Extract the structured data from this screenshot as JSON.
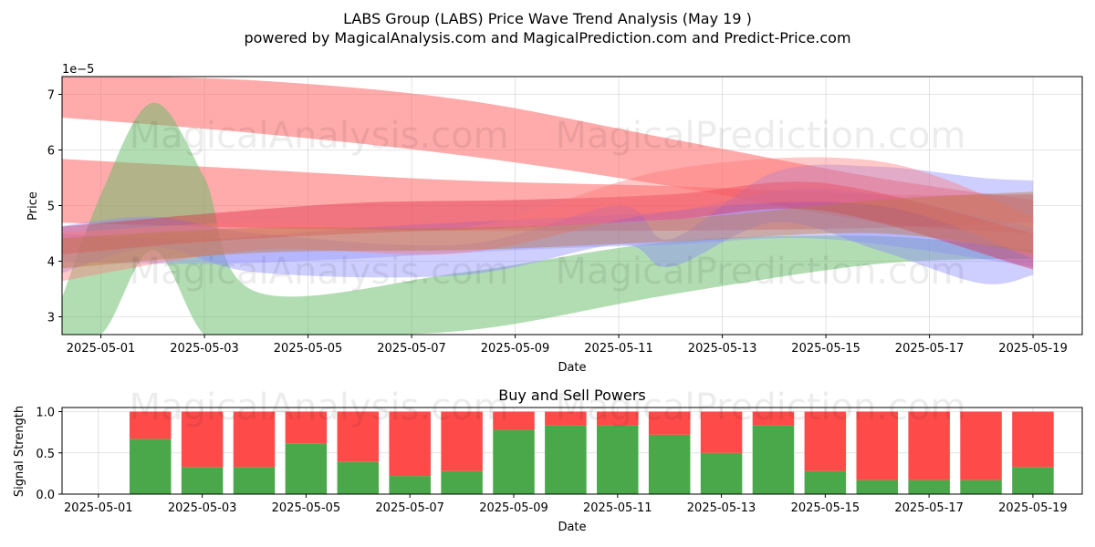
{
  "title": "LABS Group (LABS) Price Wave Trend Analysis (May 19 )",
  "subtitle": "powered by MagicalAnalysis.com and MagicalPrediction.com and Predict-Price.com",
  "watermark": "MagicalAnalysis.com    MagicalPrediction.com",
  "chart_data": [
    {
      "type": "area",
      "xlabel": "Date",
      "ylabel": "Price",
      "y_scale_label": "1e−5",
      "x_range": [
        "2025-04-30",
        "2025-05-19"
      ],
      "ylim": [
        2.68,
        7.32
      ],
      "x_ticks": [
        "2025-05-01",
        "2025-05-03",
        "2025-05-05",
        "2025-05-07",
        "2025-05-09",
        "2025-05-11",
        "2025-05-13",
        "2025-05-15",
        "2025-05-17",
        "2025-05-19"
      ],
      "y_ticks": [
        "3",
        "4",
        "5",
        "6",
        "7"
      ],
      "grid": true,
      "bands": [
        {
          "color": "#ff6666",
          "opacity": 0.55,
          "x": [
            "2025-04-30",
            "2025-05-04",
            "2025-05-08",
            "2025-05-12",
            "2025-05-16",
            "2025-05-19"
          ],
          "upper": [
            7.35,
            7.25,
            6.9,
            6.2,
            5.5,
            5.1
          ],
          "lower": [
            6.6,
            6.3,
            5.9,
            5.35,
            4.7,
            4.5
          ]
        },
        {
          "color": "#ff6666",
          "opacity": 0.55,
          "x": [
            "2025-04-30",
            "2025-05-04",
            "2025-05-08",
            "2025-05-12",
            "2025-05-16",
            "2025-05-19"
          ],
          "upper": [
            5.85,
            5.65,
            5.45,
            5.35,
            5.2,
            5.2
          ],
          "lower": [
            4.7,
            4.6,
            4.55,
            4.55,
            4.6,
            4.7
          ]
        },
        {
          "color": "#66bb66",
          "opacity": 0.5,
          "x": [
            "2025-04-30",
            "2025-05-01",
            "2025-05-02",
            "2025-05-03",
            "2025-05-04",
            "2025-05-08",
            "2025-05-12",
            "2025-05-16",
            "2025-05-19"
          ],
          "upper": [
            2.68,
            5.2,
            6.85,
            5.5,
            3.45,
            3.8,
            4.35,
            4.45,
            4.2
          ],
          "lower": [
            2.68,
            2.68,
            4.2,
            2.68,
            2.68,
            2.75,
            3.4,
            3.95,
            4.05
          ]
        },
        {
          "color": "#8888ff",
          "opacity": 0.4,
          "x": [
            "2025-04-30",
            "2025-05-02",
            "2025-05-04",
            "2025-05-08",
            "2025-05-11",
            "2025-05-12",
            "2025-05-14",
            "2025-05-16",
            "2025-05-18",
            "2025-05-19"
          ],
          "upper": [
            4.6,
            4.8,
            4.5,
            4.3,
            5.0,
            4.4,
            5.6,
            5.7,
            5.5,
            5.45
          ],
          "lower": [
            3.7,
            4.25,
            3.8,
            3.75,
            4.3,
            3.9,
            4.7,
            4.2,
            3.6,
            3.75
          ]
        },
        {
          "color": "#8888ff",
          "opacity": 0.35,
          "x": [
            "2025-04-30",
            "2025-05-03",
            "2025-05-06",
            "2025-05-09",
            "2025-05-12",
            "2025-05-15",
            "2025-05-19"
          ],
          "upper": [
            4.5,
            4.4,
            4.6,
            4.75,
            4.9,
            5.3,
            4.6
          ],
          "lower": [
            4.0,
            3.95,
            4.05,
            4.2,
            4.3,
            4.4,
            3.9
          ]
        },
        {
          "color": "#dd2244",
          "opacity": 0.4,
          "x": [
            "2025-04-30",
            "2025-05-03",
            "2025-05-06",
            "2025-05-09",
            "2025-05-12",
            "2025-05-15",
            "2025-05-19"
          ],
          "upper": [
            4.6,
            4.85,
            5.05,
            5.1,
            5.2,
            5.4,
            4.5
          ],
          "lower": [
            4.1,
            4.35,
            4.5,
            4.6,
            4.75,
            4.9,
            3.85
          ]
        },
        {
          "color": "#ff7777",
          "opacity": 0.4,
          "x": [
            "2025-04-30",
            "2025-05-04",
            "2025-05-08",
            "2025-05-12",
            "2025-05-16",
            "2025-05-19"
          ],
          "upper": [
            4.5,
            4.7,
            4.6,
            5.65,
            5.8,
            4.8
          ],
          "lower": [
            3.6,
            4.2,
            4.15,
            4.9,
            5.0,
            4.05
          ]
        },
        {
          "color": "#bb7744",
          "opacity": 0.45,
          "x": [
            "2025-04-30",
            "2025-05-04",
            "2025-05-08",
            "2025-05-12",
            "2025-05-16",
            "2025-05-19"
          ],
          "upper": [
            4.4,
            4.6,
            4.6,
            4.75,
            5.1,
            5.25
          ],
          "lower": [
            3.85,
            4.15,
            4.2,
            4.35,
            4.5,
            4.15
          ]
        }
      ]
    },
    {
      "type": "bar",
      "title": "Buy and Sell Powers",
      "xlabel": "Date",
      "ylabel": "Signal Strength",
      "ylim": [
        0,
        1.05
      ],
      "y_ticks": [
        "0.0",
        "0.5",
        "1.0"
      ],
      "x_ticks": [
        "2025-05-01",
        "2025-05-03",
        "2025-05-05",
        "2025-05-07",
        "2025-05-09",
        "2025-05-11",
        "2025-05-13",
        "2025-05-15",
        "2025-05-17",
        "2025-05-19"
      ],
      "x_range": [
        "2025-04-30",
        "2025-05-19"
      ],
      "grid": true,
      "colors": {
        "buy": "#4aa84a",
        "sell": "#ff4a4a"
      },
      "categories": [
        "2025-05-02",
        "2025-05-03",
        "2025-05-04",
        "2025-05-05",
        "2025-05-06",
        "2025-05-07",
        "2025-05-08",
        "2025-05-09",
        "2025-05-10",
        "2025-05-11",
        "2025-05-12",
        "2025-05-13",
        "2025-05-14",
        "2025-05-15",
        "2025-05-16",
        "2025-05-17",
        "2025-05-18",
        "2025-05-19"
      ],
      "series": [
        {
          "values": [
            0.67,
            0.33,
            0.33,
            0.61,
            0.39,
            0.22,
            0.28,
            0.78,
            0.83,
            0.83,
            0.72,
            0.5,
            0.83,
            0.28,
            0.17,
            0.17,
            0.17,
            0.33
          ]
        },
        {
          "values": [
            0.33,
            0.67,
            0.67,
            0.39,
            0.61,
            0.78,
            0.72,
            0.22,
            0.17,
            0.17,
            0.28,
            0.5,
            0.17,
            0.72,
            0.83,
            0.83,
            0.83,
            0.67
          ]
        }
      ]
    }
  ]
}
